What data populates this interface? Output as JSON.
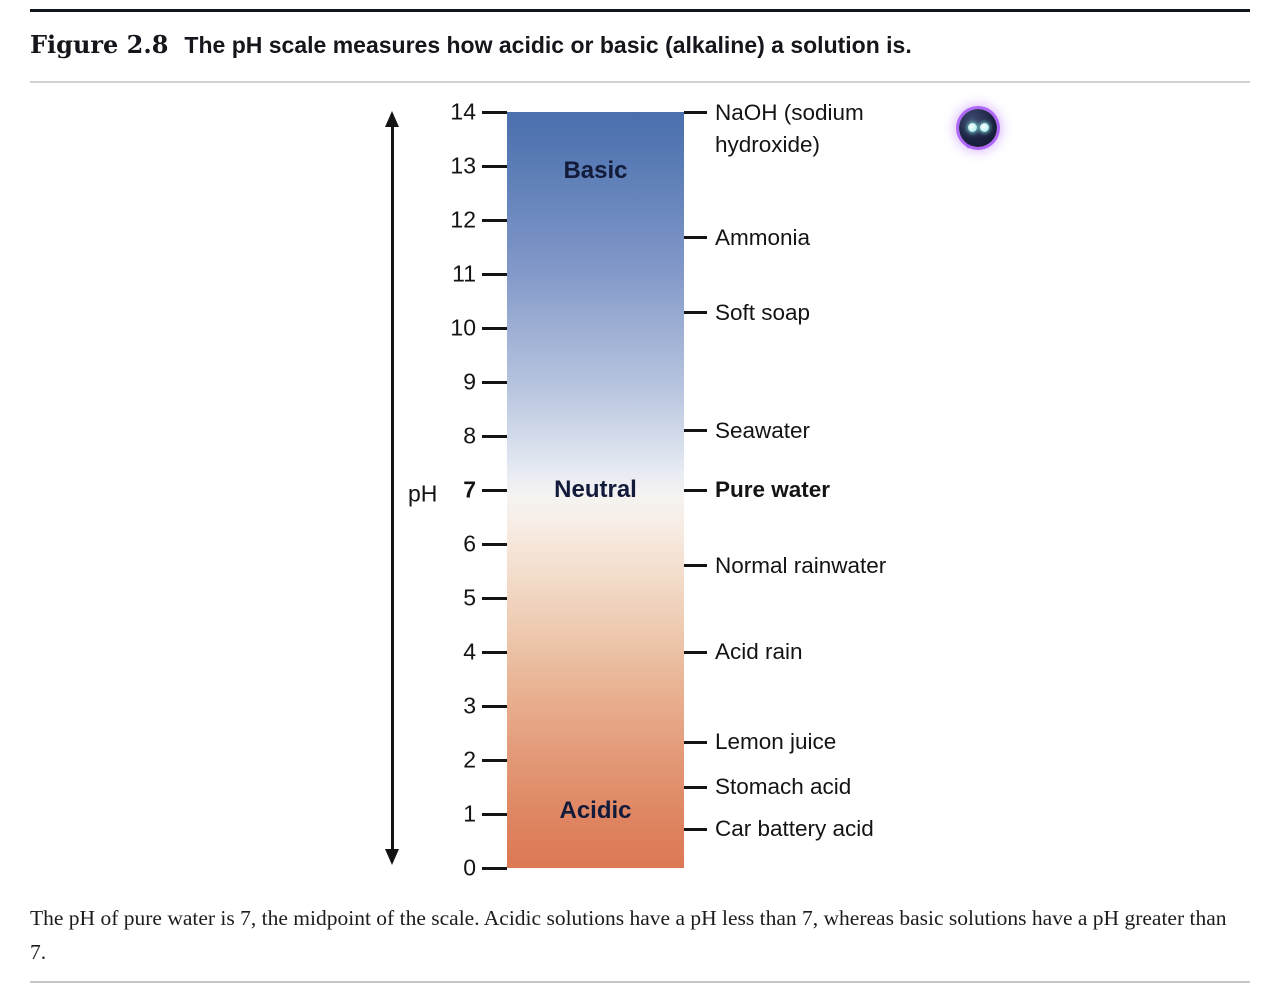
{
  "figure": {
    "label": "Figure 2.8",
    "title": "The pH scale measures how acidic or basic (alkaline) a solution is.",
    "caption": "The pH of pure water is 7, the midpoint of the scale. Acidic solutions have a pH less than 7, whereas basic solutions have a pH greater than 7."
  },
  "axis": {
    "label": "pH",
    "ticks": [
      "14",
      "13",
      "12",
      "11",
      "10",
      "9",
      "8",
      "7",
      "6",
      "5",
      "4",
      "3",
      "2",
      "1",
      "0"
    ],
    "min": 0,
    "max": 14
  },
  "zones": [
    {
      "name": "Basic",
      "ph": 12.9
    },
    {
      "name": "Neutral",
      "ph": 7
    },
    {
      "name": "Acidic",
      "ph": 1.05
    }
  ],
  "substances": [
    {
      "label": "NaOH (sodium hydroxide)",
      "ph": 14,
      "bold": false
    },
    {
      "label": "Ammonia",
      "ph": 11.67,
      "bold": false
    },
    {
      "label": "Soft soap",
      "ph": 10.28,
      "bold": false
    },
    {
      "label": "Seawater",
      "ph": 8.1,
      "bold": false
    },
    {
      "label": "Pure water",
      "ph": 7,
      "bold": true
    },
    {
      "label": "Normal rainwater",
      "ph": 5.6,
      "bold": false
    },
    {
      "label": "Acid rain",
      "ph": 4,
      "bold": false
    },
    {
      "label": "Lemon juice",
      "ph": 2.33,
      "bold": false
    },
    {
      "label": "Stomach acid",
      "ph": 1.5,
      "bold": false
    },
    {
      "label": "Car battery acid",
      "ph": 0.72,
      "bold": false
    }
  ],
  "icons": {
    "assistant": "chat-bubble-icon"
  },
  "colors": {
    "bar_top": "#4a6fad",
    "bar_bottom": "#dc7853",
    "zone_text": "#131b3a",
    "top_rule": "#10151f",
    "assistant_glow": "#a756f7"
  }
}
